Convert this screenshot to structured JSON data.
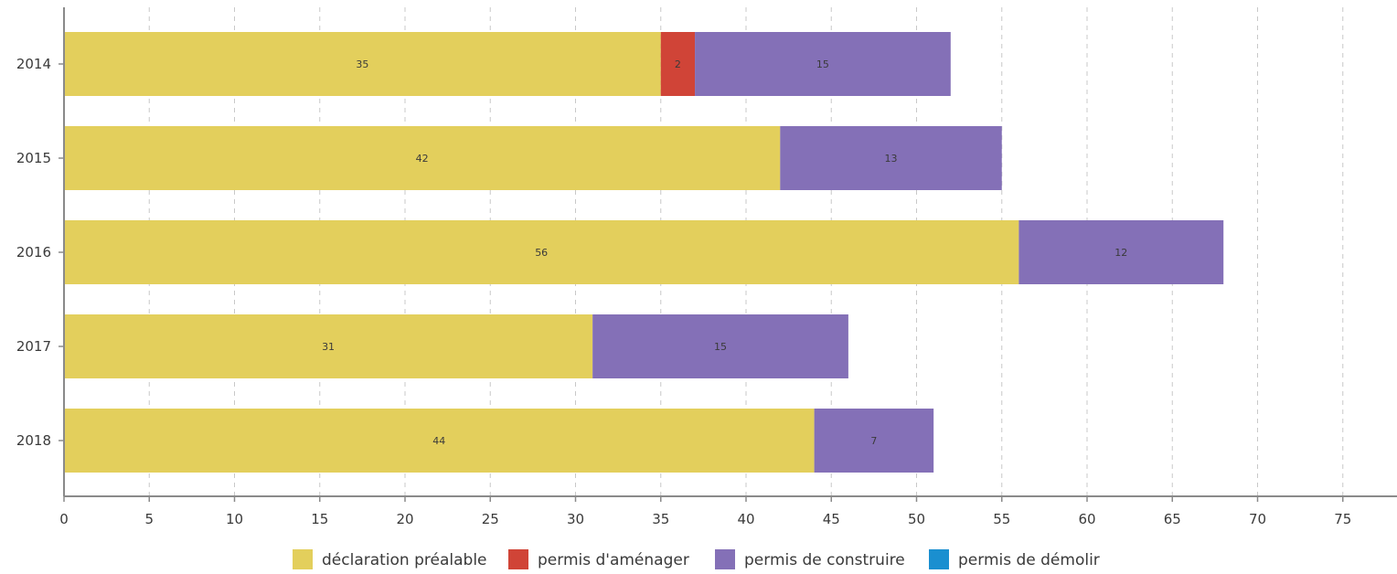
{
  "chart_data": {
    "type": "bar",
    "orientation": "horizontal",
    "stacked": true,
    "categories": [
      "2014",
      "2015",
      "2016",
      "2017",
      "2018"
    ],
    "series": [
      {
        "name": "déclaration préalable",
        "color": "#e3cf5c",
        "values": [
          35,
          42,
          56,
          31,
          44
        ]
      },
      {
        "name": "permis d'aménager",
        "color": "#d04437",
        "values": [
          2,
          0,
          0,
          0,
          0
        ]
      },
      {
        "name": "permis de construire",
        "color": "#8470b7",
        "values": [
          15,
          13,
          12,
          15,
          7
        ]
      },
      {
        "name": "permis de démolir",
        "color": "#1a8fd0",
        "values": [
          0,
          0,
          0,
          0,
          0
        ]
      }
    ],
    "xlim": [
      0,
      78
    ],
    "xticks": [
      0,
      5,
      10,
      15,
      20,
      25,
      30,
      35,
      40,
      45,
      50,
      55,
      60,
      65,
      70,
      75
    ],
    "grid": "vertical dashed",
    "legend": "bottom"
  }
}
